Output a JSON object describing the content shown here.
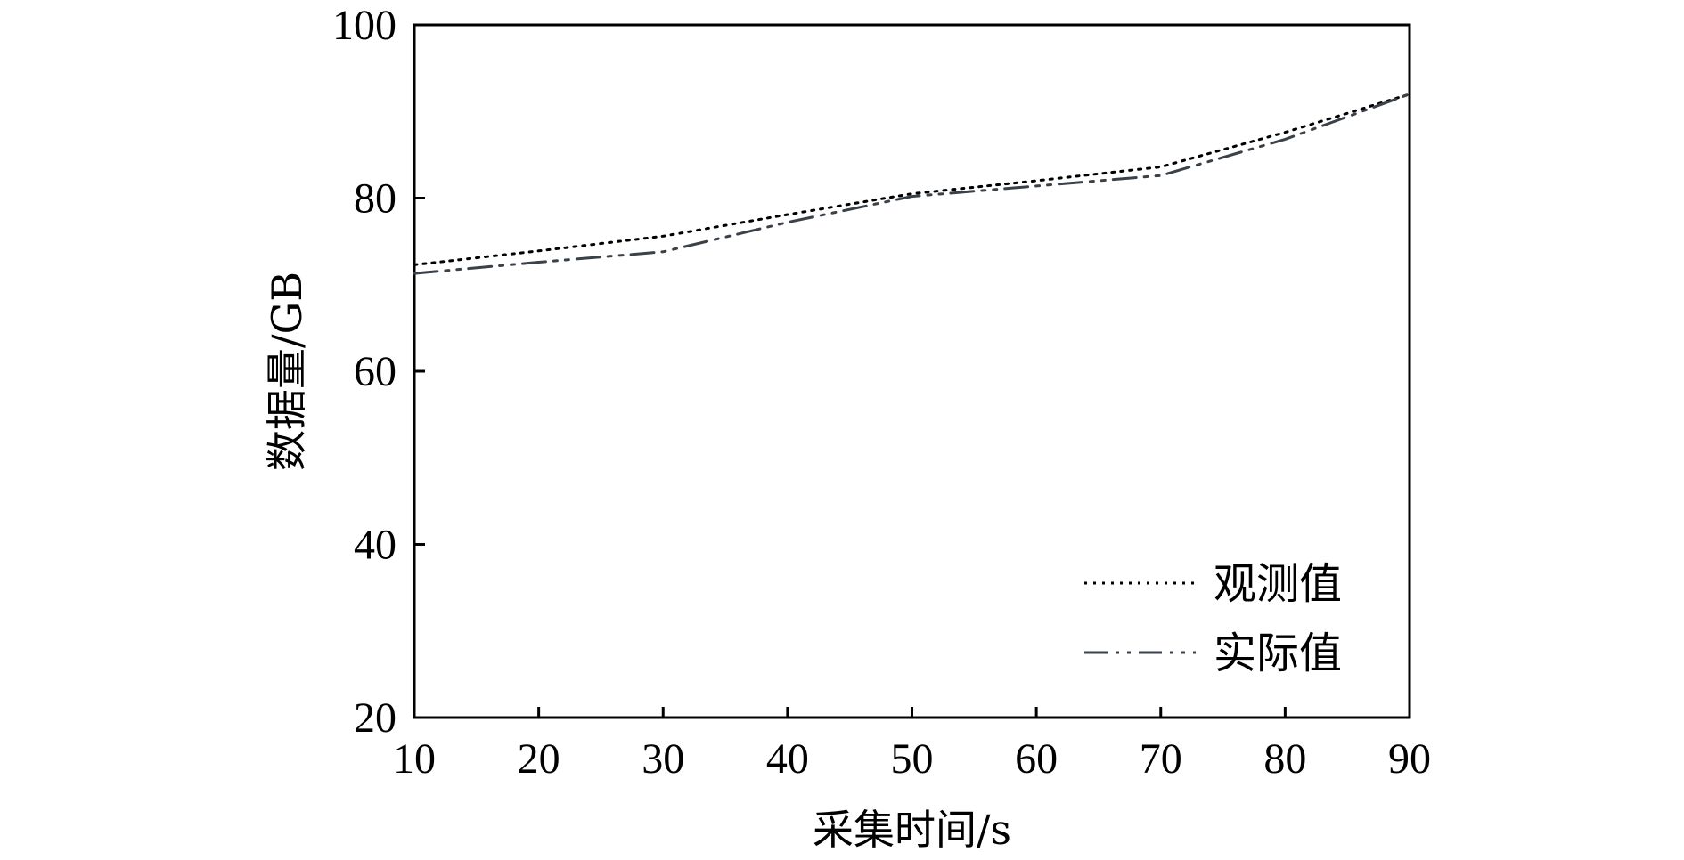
{
  "chart_data": {
    "type": "line",
    "title": "",
    "xlabel": "采集时间/s",
    "ylabel": "数据量/GB",
    "xlim": [
      10,
      90
    ],
    "ylim": [
      20,
      100
    ],
    "x_ticks": [
      10,
      20,
      30,
      40,
      50,
      60,
      70,
      80,
      90
    ],
    "y_ticks": [
      20,
      40,
      60,
      80,
      100
    ],
    "grid": false,
    "legend_position": "bottom-right",
    "series": [
      {
        "name": "观测值",
        "line_style": "dotted",
        "color": "#000000",
        "x": [
          10,
          20,
          30,
          40,
          50,
          60,
          70,
          80,
          90
        ],
        "y": [
          72.3,
          73.9,
          75.6,
          78.1,
          80.5,
          82.0,
          83.6,
          87.6,
          92.0
        ]
      },
      {
        "name": "实际值",
        "line_style": "dash-dot-dot",
        "color": "#3a4148",
        "x": [
          10,
          20,
          30,
          40,
          50,
          60,
          70,
          80,
          90
        ],
        "y": [
          71.3,
          72.6,
          73.8,
          77.2,
          80.2,
          81.4,
          82.6,
          86.8,
          92.0
        ]
      }
    ]
  }
}
